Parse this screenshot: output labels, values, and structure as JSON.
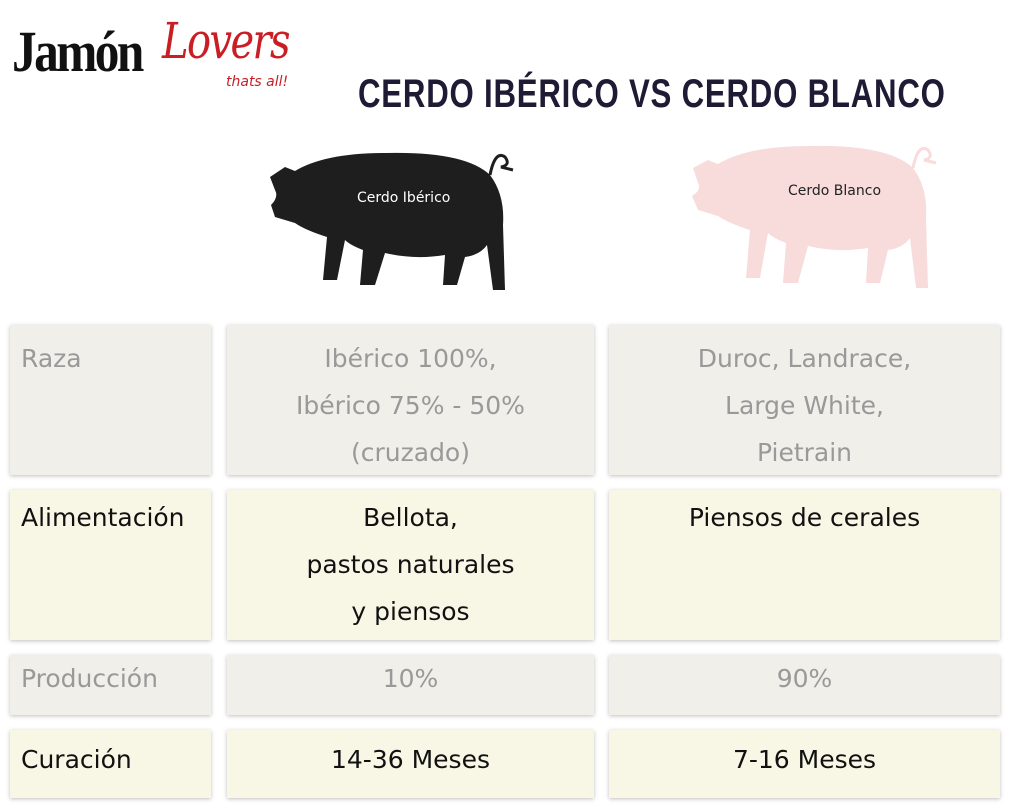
{
  "logo": {
    "brand_black": "Jamón",
    "brand_red": "Lovers",
    "tagline": "thats all!"
  },
  "title": "CERDO IBÉRICO VS CERDO BLANCO",
  "pigs": [
    {
      "label": "Cerdo Ibérico",
      "color": "#1e1e1e"
    },
    {
      "label": "Cerdo Blanco",
      "color": "#f8dcdc"
    }
  ],
  "rows": [
    {
      "label": "Raza",
      "iberico": [
        "Ibérico 100%,",
        "Ibérico 75% - 50%",
        "(cruzado)"
      ],
      "blanco": [
        "Duroc, Landrace,",
        "Large White,",
        "Pietrain"
      ]
    },
    {
      "label": "Alimentación",
      "iberico": [
        "Bellota,",
        "pastos naturales",
        "y piensos"
      ],
      "blanco": [
        "Piensos de cerales"
      ]
    },
    {
      "label": "Producción",
      "iberico": [
        "10%"
      ],
      "blanco": [
        "90%"
      ]
    },
    {
      "label": "Curación",
      "iberico": [
        "14-36 Meses"
      ],
      "blanco": [
        "7-16 Meses"
      ]
    }
  ]
}
